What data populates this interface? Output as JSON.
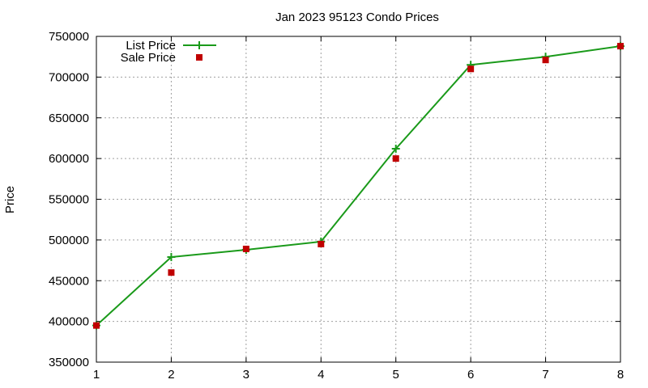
{
  "chart_data": {
    "type": "line",
    "title": "Jan 2023 95123 Condo Prices",
    "xlabel": "",
    "ylabel": "Price",
    "x": [
      1,
      2,
      3,
      4,
      5,
      6,
      7,
      8
    ],
    "xlim": [
      1,
      8
    ],
    "ylim": [
      350000,
      750000
    ],
    "xticks": [
      "1",
      "2",
      "3",
      "4",
      "5",
      "6",
      "7",
      "8"
    ],
    "yticks": [
      "350000",
      "400000",
      "450000",
      "500000",
      "550000",
      "600000",
      "650000",
      "700000",
      "750000"
    ],
    "grid": true,
    "legend_position": "top-left",
    "series": [
      {
        "name": "List Price",
        "style": "line with plus markers",
        "color": "#1a9a1a",
        "values": [
          395000,
          479000,
          488000,
          498000,
          612000,
          715000,
          725000,
          738000
        ]
      },
      {
        "name": "Sale Price",
        "style": "square markers",
        "color": "#c00000",
        "values": [
          395000,
          460000,
          489000,
          495000,
          600000,
          710000,
          721000,
          738000
        ]
      }
    ]
  }
}
